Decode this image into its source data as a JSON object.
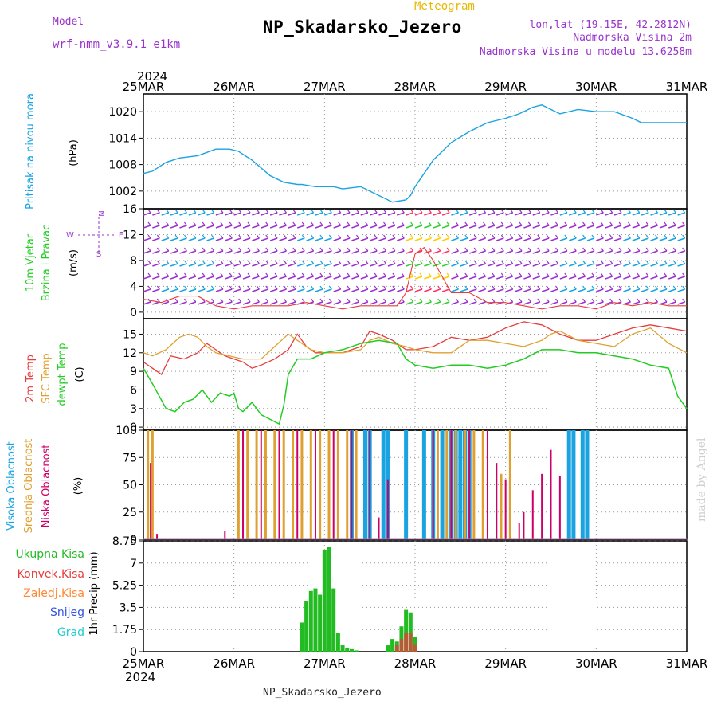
{
  "header": {
    "model_label": "Model",
    "model_name": "wrf-nmm_v3.9.1 e1km",
    "meteogram_label": "Meteogram",
    "station_title": "NP_Skadarsko_Jezero",
    "lonlat": "lon,lat (19.15E, 42.2812N)",
    "elevation": "Nadmorska Visina 2m",
    "model_elevation": "Nadmorska Visina u modelu 13.6258m",
    "footer_title": "NP_Skadarsko_Jezero",
    "credit": "made by Angel"
  },
  "colors": {
    "model": "#9933cc",
    "meteogram": "#e6b800",
    "pressure": "#1aa3e0",
    "t2m": "#e63c3c",
    "tsfc": "#e0a030",
    "dewpoint": "#22cc22",
    "wind_speed": "#ff66cc",
    "cloud_high": "#1aa3e0",
    "cloud_mid": "#e0a030",
    "cloud_low": "#cc0066",
    "rain_total": "#22bb22",
    "rain_conv": "#e63c3c",
    "rain_frz": "#ff8833",
    "snow": "#3355dd",
    "hail": "#22cccc"
  },
  "chart_data": [
    {
      "type": "line",
      "x_axis": {
        "top_year": "2024",
        "bottom_year": "2024",
        "categories": [
          "25MAR",
          "26MAR",
          "27MAR",
          "28MAR",
          "29MAR",
          "30MAR",
          "31MAR"
        ]
      },
      "ylabel": "Pritisak na nivou mora",
      "yunit": "(hPa)",
      "yticks": [
        1002,
        1008,
        1014,
        1020
      ],
      "ylim": [
        998,
        1024
      ],
      "grid": true,
      "series": [
        {
          "name": "Pritisak na nivou mora",
          "x": [
            0,
            0.1,
            0.25,
            0.4,
            0.6,
            0.8,
            0.95,
            1.05,
            1.2,
            1.4,
            1.55,
            1.7,
            1.75,
            1.9,
            2.1,
            2.2,
            2.4,
            2.6,
            2.75,
            2.9,
            2.95,
            3.0,
            3.1,
            3.2,
            3.4,
            3.6,
            3.8,
            4.0,
            4.15,
            4.3,
            4.4,
            4.5,
            4.6,
            4.8,
            5.0,
            5.2,
            5.4,
            5.5,
            5.6,
            5.8,
            6.0
          ],
          "values": [
            1006,
            1006.5,
            1008.5,
            1009.5,
            1010,
            1011.5,
            1011.5,
            1011,
            1009,
            1005.5,
            1004,
            1003.5,
            1003.5,
            1003,
            1003,
            1002.5,
            1003,
            1001,
            999.5,
            1000,
            1001,
            1003,
            1006,
            1009,
            1013,
            1015.5,
            1017.5,
            1018.5,
            1019.5,
            1021,
            1021.5,
            1020.5,
            1019.5,
            1020.5,
            1020,
            1020,
            1018.5,
            1017.5,
            1017.5,
            1017.5,
            1017.5
          ]
        }
      ]
    },
    {
      "type": "line",
      "ylabel": "10m Vjetar",
      "ylabel2": "Brzina i Pravac",
      "yunit": "(m/s)",
      "yticks": [
        0,
        4,
        8,
        12,
        16
      ],
      "ylim": [
        -1,
        16
      ],
      "compass": {
        "n": "N",
        "s": "S",
        "e": "E",
        "w": "W"
      },
      "grid": true,
      "series": [
        {
          "name": "Brzina i Pravac",
          "x": [
            0,
            0.2,
            0.4,
            0.6,
            0.8,
            1.0,
            1.2,
            1.4,
            1.6,
            1.8,
            2.0,
            2.2,
            2.4,
            2.6,
            2.8,
            2.9,
            3.0,
            3.1,
            3.2,
            3.4,
            3.6,
            3.8,
            4.0,
            4.2,
            4.4,
            4.6,
            4.8,
            5.0,
            5.2,
            5.4,
            5.6,
            5.8,
            6.0
          ],
          "values": [
            2,
            1.5,
            2.5,
            2.5,
            1,
            0.5,
            1,
            1,
            1,
            1.5,
            1,
            0.5,
            1,
            1,
            1,
            3,
            9,
            10,
            8,
            3,
            3,
            1.5,
            1.5,
            1,
            0.5,
            1,
            1,
            0.5,
            1.5,
            1,
            1.5,
            1,
            1
          ]
        }
      ]
    },
    {
      "type": "line",
      "ylabel": "2m Temp",
      "ylabel2": "SFC Temp",
      "ylabel3": "dewpt Temp",
      "yunit": "(C)",
      "yticks": [
        0,
        3,
        6,
        9,
        12,
        15
      ],
      "ylim": [
        -0.5,
        17.5
      ],
      "grid": true,
      "series": [
        {
          "name": "2m Temp",
          "x": [
            0,
            0.1,
            0.2,
            0.3,
            0.45,
            0.6,
            0.7,
            0.8,
            0.9,
            1.0,
            1.1,
            1.2,
            1.3,
            1.45,
            1.6,
            1.7,
            1.8,
            1.9,
            2.0,
            2.2,
            2.4,
            2.5,
            2.6,
            2.75,
            2.9,
            3.0,
            3.2,
            3.4,
            3.6,
            3.8,
            4.0,
            4.2,
            4.4,
            4.6,
            4.8,
            5.0,
            5.2,
            5.4,
            5.6,
            5.8,
            6.0
          ],
          "values": [
            10.5,
            9.5,
            8.5,
            11.5,
            11,
            12,
            13.5,
            12.5,
            11.5,
            11,
            10.5,
            9.5,
            10,
            11,
            12.5,
            15,
            13,
            12,
            12,
            12,
            13,
            15.5,
            15,
            14,
            12.5,
            12.5,
            13,
            14.5,
            14,
            14.5,
            16,
            17,
            16.5,
            15,
            14,
            14,
            15,
            16,
            16.5,
            16,
            15.5
          ]
        },
        {
          "name": "SFC Temp",
          "x": [
            0,
            0.1,
            0.25,
            0.4,
            0.5,
            0.6,
            0.7,
            0.8,
            0.95,
            1.1,
            1.2,
            1.3,
            1.45,
            1.6,
            1.7,
            1.85,
            2.0,
            2.2,
            2.4,
            2.5,
            2.6,
            2.75,
            2.9,
            3.0,
            3.2,
            3.4,
            3.6,
            3.8,
            4.0,
            4.2,
            4.4,
            4.5,
            4.6,
            4.8,
            5.0,
            5.2,
            5.4,
            5.6,
            5.8,
            6.0
          ],
          "values": [
            12,
            11.5,
            12.5,
            14.5,
            15,
            14.5,
            13,
            12,
            11.5,
            11,
            11,
            11,
            13,
            15,
            14,
            12.5,
            12,
            12,
            12.5,
            14,
            14.5,
            13.5,
            13,
            12.5,
            12,
            12,
            14,
            14,
            13.5,
            13,
            14,
            15,
            15.5,
            14,
            13.5,
            13,
            15,
            16,
            13.5,
            12
          ]
        },
        {
          "name": "dewpt Temp",
          "x": [
            0,
            0.1,
            0.25,
            0.35,
            0.45,
            0.55,
            0.65,
            0.75,
            0.85,
            0.95,
            1.0,
            1.05,
            1.1,
            1.2,
            1.3,
            1.5,
            1.55,
            1.6,
            1.7,
            1.85,
            2.0,
            2.2,
            2.4,
            2.6,
            2.8,
            2.9,
            3.0,
            3.2,
            3.4,
            3.6,
            3.8,
            4.0,
            4.2,
            4.4,
            4.6,
            4.8,
            5.0,
            5.2,
            5.4,
            5.6,
            5.8,
            5.9,
            6.0
          ],
          "values": [
            9.5,
            7,
            3,
            2.5,
            4,
            4.5,
            6,
            4,
            5.5,
            5,
            5.5,
            3,
            2.5,
            4,
            2,
            0.5,
            3.5,
            8.5,
            11,
            11,
            12,
            12.5,
            13.5,
            14,
            13.5,
            11,
            10,
            9.5,
            10,
            10,
            9.5,
            10,
            11,
            12.5,
            12.5,
            12,
            12,
            11.5,
            11,
            10,
            9.5,
            5,
            3
          ]
        }
      ]
    },
    {
      "type": "bar",
      "ylabel": "Visoka Oblacnost",
      "ylabel2": "Srednja Oblacnost",
      "ylabel3": "Niska Oblacnost",
      "yunit": "(%)",
      "yticks": [
        0,
        25,
        50,
        75,
        100
      ],
      "ylim": [
        0,
        100
      ],
      "grid": true,
      "series": [
        {
          "name": "Visoka Oblacnost",
          "x": [
            2.3,
            2.45,
            2.5,
            2.65,
            2.7,
            2.9,
            3.1,
            3.2,
            3.3,
            3.4,
            3.45,
            3.5,
            3.55,
            3.6,
            4.7,
            4.75,
            4.85,
            4.9
          ],
          "values": [
            100,
            100,
            100,
            100,
            100,
            100,
            100,
            100,
            100,
            100,
            100,
            100,
            100,
            100,
            100,
            100,
            100,
            100
          ]
        },
        {
          "name": "Srednja Oblacnost",
          "x": [
            0.05,
            0.1,
            1.05,
            1.15,
            1.25,
            1.35,
            1.45,
            1.55,
            1.65,
            1.75,
            1.85,
            1.95,
            2.05,
            2.15,
            2.25,
            2.35,
            3.25,
            3.35,
            3.45,
            3.55,
            3.65,
            3.75,
            3.95,
            4.05
          ],
          "values": [
            100,
            100,
            100,
            100,
            100,
            100,
            100,
            100,
            100,
            100,
            100,
            100,
            100,
            100,
            100,
            100,
            100,
            100,
            100,
            100,
            100,
            100,
            60,
            100
          ]
        },
        {
          "name": "Niska Oblacnost",
          "x": [
            0.08,
            0.15,
            0.9,
            1.1,
            1.3,
            1.5,
            1.7,
            1.9,
            2.1,
            2.3,
            2.5,
            2.6,
            2.7,
            3.2,
            3.4,
            3.6,
            3.8,
            3.9,
            4.0,
            4.15,
            4.2,
            4.3,
            4.4,
            4.5,
            4.6
          ],
          "values": [
            70,
            5,
            8,
            100,
            100,
            100,
            100,
            100,
            100,
            100,
            100,
            20,
            55,
            100,
            100,
            100,
            100,
            70,
            55,
            15,
            25,
            45,
            60,
            82,
            58
          ]
        }
      ]
    },
    {
      "type": "bar",
      "ylabel": "1hr Precip (mm)",
      "legend": [
        "Ukupna Kisa",
        "Konvek.Kisa",
        "Zaledj.Kisa",
        "Snijeg",
        "Grad"
      ],
      "yticks": [
        0,
        1.75,
        3.5,
        5.25,
        7,
        8.75
      ],
      "ylim": [
        0,
        8.75
      ],
      "grid": true,
      "series": [
        {
          "name": "Ukupna Kisa",
          "x": [
            1.75,
            1.8,
            1.85,
            1.9,
            1.95,
            2.0,
            2.05,
            2.1,
            2.15,
            2.2,
            2.25,
            2.3,
            2.35,
            2.7,
            2.75,
            2.8,
            2.85,
            2.9,
            2.95,
            3.0
          ],
          "values": [
            2.3,
            4,
            4.8,
            5,
            4.5,
            8,
            8.3,
            5,
            1.5,
            0.5,
            0.3,
            0.2,
            0.1,
            0.5,
            1,
            0.8,
            2,
            3.3,
            3.1,
            1.2
          ]
        },
        {
          "name": "Konvek.Kisa",
          "x": [
            2.8,
            2.85,
            2.9,
            2.95,
            3.0
          ],
          "values": [
            0.5,
            1,
            1.5,
            1.5,
            0.6
          ]
        }
      ]
    }
  ]
}
